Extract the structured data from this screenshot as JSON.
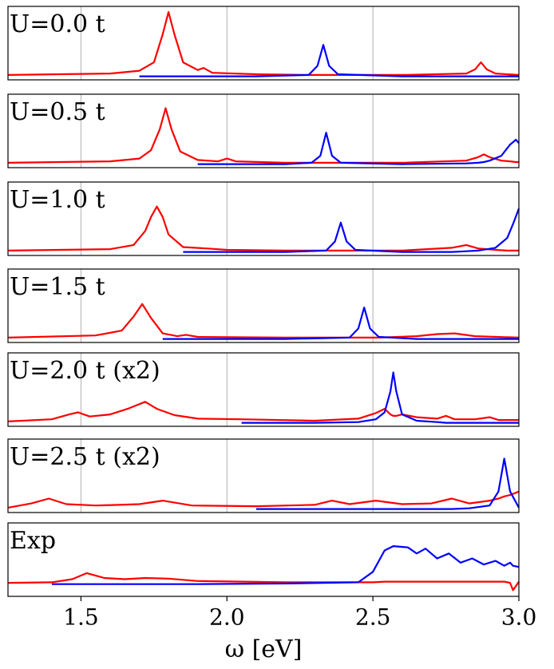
{
  "chart_data": [
    {
      "type": "line",
      "annotation": "U=0.0 t",
      "xlim": [
        1.25,
        3.0
      ],
      "ylim": [
        -0.05,
        1
      ],
      "xticks": [
        1.5,
        2,
        2.5,
        3
      ],
      "grid": true,
      "x": [
        1.25,
        1.6,
        1.7,
        1.75,
        1.78,
        1.8,
        1.82,
        1.85,
        1.9,
        1.92,
        1.95,
        2.1,
        2.28,
        2.31,
        2.33,
        2.35,
        2.38,
        2.6,
        2.82,
        2.85,
        2.87,
        2.89,
        2.92,
        3.0
      ],
      "series": [
        {
          "color": "#ff0000",
          "values": [
            0.02,
            0.04,
            0.08,
            0.2,
            0.6,
            0.92,
            0.6,
            0.2,
            0.09,
            0.12,
            0.05,
            0.03,
            0.02,
            0.02,
            0.02,
            0.02,
            0.02,
            0.02,
            0.04,
            0.1,
            0.2,
            0.1,
            0.04,
            0.02
          ]
        },
        {
          "color": "#0000ff",
          "values": [
            null,
            null,
            0,
            0,
            0,
            0,
            0,
            0,
            0,
            0,
            0,
            0,
            0.02,
            0.15,
            0.45,
            0.15,
            0.03,
            0,
            0,
            0,
            0,
            0,
            0,
            0
          ]
        }
      ]
    },
    {
      "type": "line",
      "annotation": "U=0.5 t",
      "xlim": [
        1.25,
        3.0
      ],
      "ylim": [
        -0.05,
        1
      ],
      "xticks": [
        1.5,
        2,
        2.5,
        3
      ],
      "grid": true,
      "x": [
        1.25,
        1.6,
        1.7,
        1.74,
        1.77,
        1.79,
        1.81,
        1.84,
        1.9,
        1.97,
        2.0,
        2.03,
        2.2,
        2.29,
        2.32,
        2.34,
        2.36,
        2.39,
        2.6,
        2.82,
        2.86,
        2.88,
        2.9,
        2.94,
        2.97,
        2.99,
        3.0
      ],
      "series": [
        {
          "color": "#ff0000",
          "values": [
            0.02,
            0.04,
            0.08,
            0.2,
            0.5,
            0.8,
            0.5,
            0.18,
            0.06,
            0.04,
            0.08,
            0.04,
            0.02,
            0.02,
            0.02,
            0.02,
            0.02,
            0.02,
            0.02,
            0.05,
            0.1,
            0.14,
            0.1,
            0.05,
            0.04,
            0.03,
            0.03
          ]
        },
        {
          "color": "#0000ff",
          "values": [
            null,
            null,
            null,
            null,
            null,
            null,
            null,
            null,
            0,
            0,
            0,
            0,
            0,
            0.02,
            0.12,
            0.45,
            0.12,
            0.02,
            0,
            0.01,
            0.02,
            0.03,
            0.05,
            0.12,
            0.28,
            0.35,
            0.3
          ]
        }
      ]
    },
    {
      "type": "line",
      "annotation": "U=1.0 t",
      "xlim": [
        1.25,
        3.0
      ],
      "ylim": [
        -0.05,
        1
      ],
      "xticks": [
        1.5,
        2,
        2.5,
        3
      ],
      "grid": true,
      "x": [
        1.25,
        1.6,
        1.68,
        1.72,
        1.74,
        1.76,
        1.78,
        1.8,
        1.85,
        1.93,
        2.0,
        2.2,
        2.34,
        2.37,
        2.39,
        2.41,
        2.44,
        2.6,
        2.77,
        2.82,
        2.86,
        2.92,
        2.96,
        2.98,
        3.0
      ],
      "series": [
        {
          "color": "#ff0000",
          "values": [
            0.02,
            0.04,
            0.1,
            0.3,
            0.5,
            0.65,
            0.5,
            0.25,
            0.07,
            0.05,
            0.03,
            0.02,
            0.02,
            0.02,
            0.02,
            0.02,
            0.02,
            0.02,
            0.06,
            0.1,
            0.05,
            0.03,
            0.02,
            0.02,
            0.02
          ]
        },
        {
          "color": "#0000ff",
          "values": [
            null,
            null,
            null,
            null,
            null,
            null,
            null,
            null,
            0,
            0,
            0,
            0,
            0.02,
            0.15,
            0.42,
            0.15,
            0.03,
            0,
            0,
            0.01,
            0.02,
            0.06,
            0.2,
            0.4,
            0.62
          ]
        }
      ]
    },
    {
      "type": "line",
      "annotation": "U=1.5 t",
      "xlim": [
        1.25,
        3.0
      ],
      "ylim": [
        -0.05,
        1
      ],
      "xticks": [
        1.5,
        2,
        2.5,
        3
      ],
      "grid": true,
      "x": [
        1.25,
        1.55,
        1.64,
        1.68,
        1.71,
        1.74,
        1.78,
        1.83,
        1.86,
        1.9,
        2.2,
        2.42,
        2.45,
        2.47,
        2.49,
        2.52,
        2.65,
        2.72,
        2.78,
        2.85,
        3.0
      ],
      "series": [
        {
          "color": "#ff0000",
          "values": [
            0.02,
            0.05,
            0.12,
            0.32,
            0.5,
            0.3,
            0.08,
            0.04,
            0.06,
            0.03,
            0.02,
            0.02,
            0.02,
            0.02,
            0.02,
            0.02,
            0.04,
            0.07,
            0.08,
            0.04,
            0.02
          ]
        },
        {
          "color": "#0000ff",
          "values": [
            null,
            null,
            null,
            null,
            null,
            null,
            0,
            0,
            0,
            0,
            0,
            0.02,
            0.15,
            0.45,
            0.15,
            0.03,
            0,
            0,
            0,
            0,
            0
          ]
        }
      ]
    },
    {
      "type": "line",
      "annotation": "U=2.0 t (x2)",
      "xlim": [
        1.25,
        3.0
      ],
      "ylim": [
        -0.05,
        1
      ],
      "xticks": [
        1.5,
        2,
        2.5,
        3
      ],
      "grid": true,
      "x": [
        1.25,
        1.4,
        1.46,
        1.49,
        1.53,
        1.6,
        1.66,
        1.72,
        1.76,
        1.82,
        1.9,
        2.05,
        2.3,
        2.45,
        2.51,
        2.54,
        2.56,
        2.57,
        2.58,
        2.6,
        2.65,
        2.72,
        2.75,
        2.78,
        2.85,
        2.9,
        2.93,
        3.0
      ],
      "series": [
        {
          "color": "#ff0000",
          "values": [
            0.02,
            0.05,
            0.12,
            0.15,
            0.09,
            0.12,
            0.2,
            0.3,
            0.2,
            0.11,
            0.06,
            0.05,
            0.03,
            0.06,
            0.14,
            0.2,
            0.12,
            0.1,
            0.1,
            0.12,
            0.08,
            0.06,
            0.1,
            0.05,
            0.05,
            0.08,
            0.04,
            0.04
          ]
        },
        {
          "color": "#0000ff",
          "values": [
            null,
            null,
            null,
            null,
            null,
            null,
            null,
            null,
            null,
            null,
            null,
            0,
            0,
            0.01,
            0.05,
            0.15,
            0.45,
            0.72,
            0.45,
            0.12,
            0.03,
            0.01,
            0,
            0,
            0,
            0,
            0,
            0
          ]
        }
      ]
    },
    {
      "type": "line",
      "annotation": "U=2.5 t (x2)",
      "xlim": [
        1.25,
        3.0
      ],
      "ylim": [
        -0.05,
        1
      ],
      "xticks": [
        1.5,
        2,
        2.5,
        3
      ],
      "grid": true,
      "x": [
        1.25,
        1.33,
        1.39,
        1.45,
        1.55,
        1.63,
        1.7,
        1.78,
        1.88,
        2.1,
        2.3,
        2.36,
        2.42,
        2.51,
        2.6,
        2.7,
        2.77,
        2.83,
        2.9,
        2.93,
        2.95,
        2.97,
        3.0
      ],
      "series": [
        {
          "color": "#ff0000",
          "values": [
            0.02,
            0.08,
            0.15,
            0.07,
            0.05,
            0.06,
            0.07,
            0.12,
            0.05,
            0.04,
            0.06,
            0.12,
            0.07,
            0.12,
            0.07,
            0.08,
            0.15,
            0.08,
            0.12,
            0.15,
            0.18,
            0.2,
            0.25
          ]
        },
        {
          "color": "#0000ff",
          "values": [
            null,
            null,
            null,
            null,
            null,
            null,
            null,
            null,
            null,
            0,
            0,
            0,
            0,
            0,
            0,
            0,
            0,
            0.01,
            0.05,
            0.25,
            0.72,
            0.25,
            0.02
          ]
        }
      ]
    },
    {
      "type": "line",
      "annotation": "Exp",
      "xlabel": "ω [eV]",
      "xlim": [
        1.25,
        3.0
      ],
      "ylim": [
        -0.2,
        1
      ],
      "xticks": [
        {
          "value": 1.5,
          "label": "1.5"
        },
        {
          "value": 2,
          "label": "2.0"
        },
        {
          "value": 2.5,
          "label": "2.5"
        },
        {
          "value": 3,
          "label": "3.0"
        }
      ],
      "grid": false,
      "x": [
        1.25,
        1.4,
        1.47,
        1.52,
        1.58,
        1.65,
        1.72,
        1.8,
        1.9,
        2.2,
        2.45,
        2.5,
        2.54,
        2.57,
        2.62,
        2.65,
        2.68,
        2.72,
        2.76,
        2.8,
        2.84,
        2.88,
        2.92,
        2.95,
        2.97,
        2.98,
        3.0
      ],
      "series": [
        {
          "color": "#ff0000",
          "values": [
            0.02,
            0.03,
            0.08,
            0.18,
            0.1,
            0.08,
            0.1,
            0.09,
            0.05,
            0.03,
            0.03,
            0.03,
            0.04,
            0.04,
            0.04,
            0.04,
            0.04,
            0.04,
            0.04,
            0.04,
            0.04,
            0.04,
            0.04,
            0.04,
            0.02,
            -0.1,
            0.04
          ]
        },
        {
          "color": "#0000ff",
          "values": [
            null,
            0,
            0,
            0,
            0,
            0,
            0,
            0,
            0,
            0.01,
            0.03,
            0.2,
            0.55,
            0.62,
            0.6,
            0.5,
            0.58,
            0.42,
            0.5,
            0.35,
            0.42,
            0.32,
            0.38,
            0.3,
            0.35,
            0.3,
            0.28
          ]
        }
      ]
    }
  ]
}
